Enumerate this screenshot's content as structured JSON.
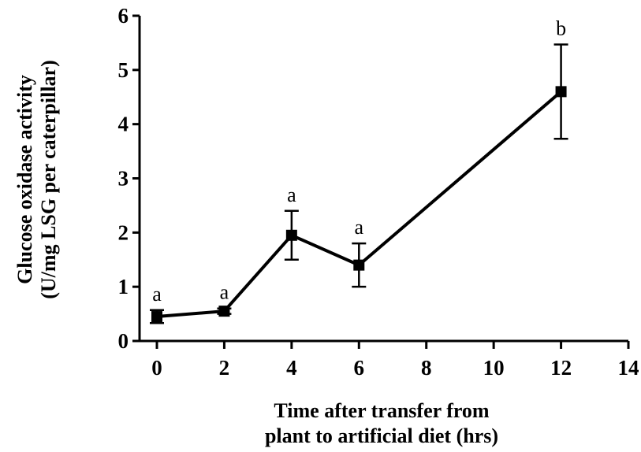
{
  "chart_data": {
    "type": "line",
    "title": "",
    "xlabel_lines": [
      "Time after transfer from",
      "plant to artificial diet (hrs)"
    ],
    "ylabel_lines": [
      "Glucose oxidase activity",
      "(U/mg LSG per caterpillar)"
    ],
    "xlim": [
      0,
      14
    ],
    "ylim": [
      0,
      6
    ],
    "xticks": [
      0,
      2,
      4,
      6,
      8,
      10,
      12,
      14
    ],
    "yticks": [
      0,
      1,
      2,
      3,
      4,
      5,
      6
    ],
    "grid": false,
    "legend": "none",
    "marker": "square",
    "color": "#000000",
    "series": [
      {
        "x": [
          0,
          2,
          4,
          6,
          12
        ],
        "y": [
          0.45,
          0.55,
          1.95,
          1.4,
          4.6
        ],
        "error": [
          0.12,
          0.05,
          0.45,
          0.4,
          0.87
        ],
        "annotations": [
          "a",
          "a",
          "a",
          "a",
          "b"
        ]
      }
    ]
  }
}
